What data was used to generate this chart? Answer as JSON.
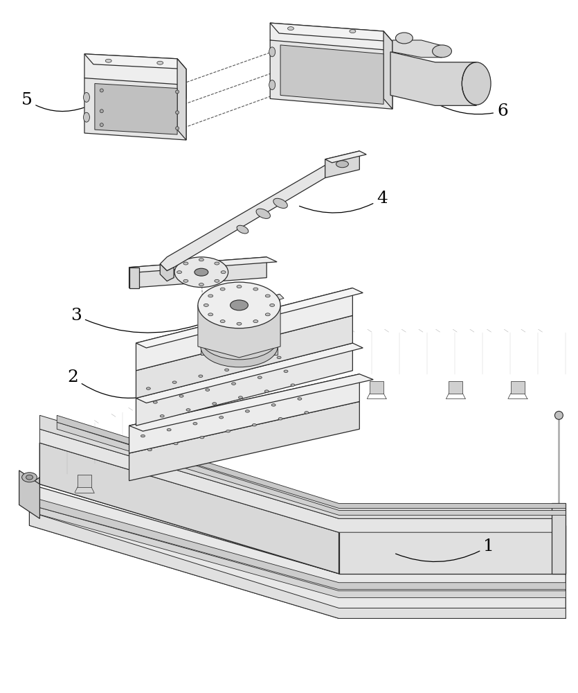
{
  "background_color": "#ffffff",
  "line_color": "#2a2a2a",
  "label_color": "#000000",
  "figsize": [
    8.35,
    10.0
  ],
  "dpi": 100,
  "label_fontsize": 18
}
